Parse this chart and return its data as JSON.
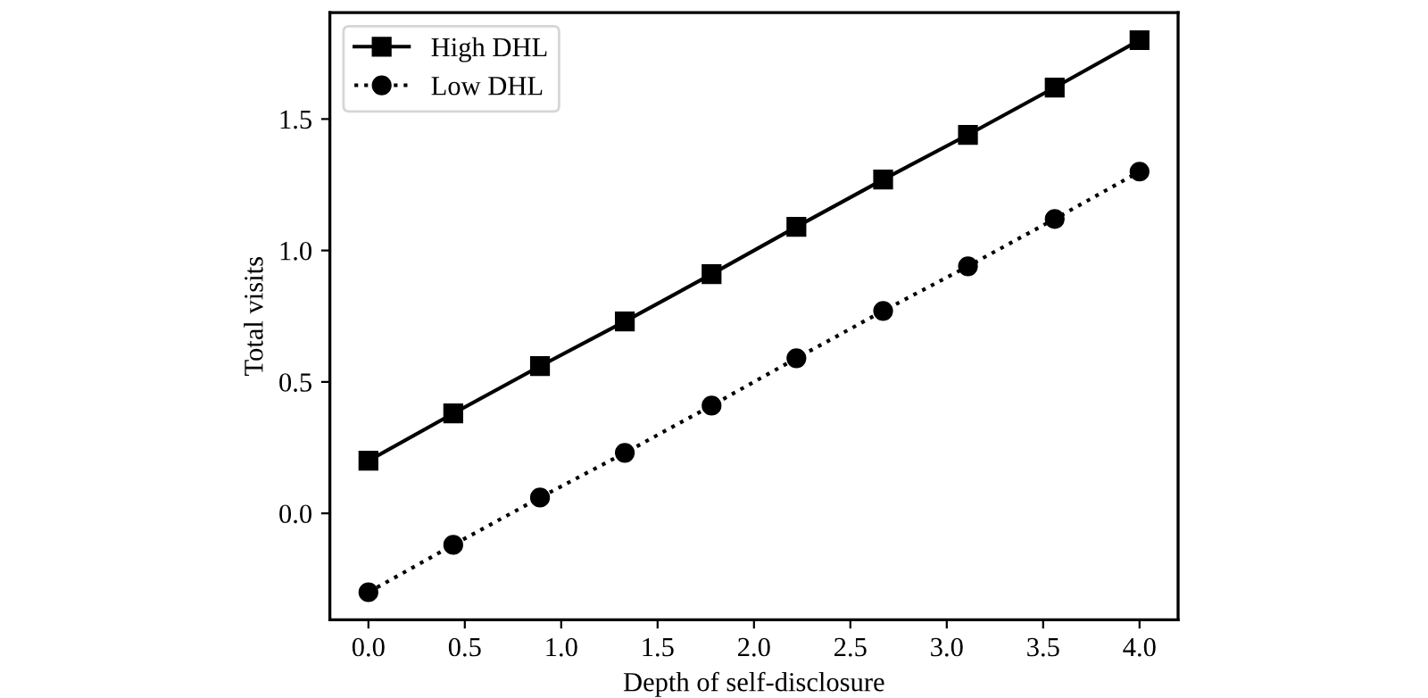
{
  "chart_data": {
    "type": "line",
    "xlabel": "Depth of self-disclosure",
    "ylabel": "Total visits",
    "x": [
      0,
      0.44,
      0.89,
      1.33,
      1.78,
      2.22,
      2.67,
      3.11,
      3.56,
      4.0
    ],
    "series": [
      {
        "name": "High DHL",
        "color": "#000000",
        "marker": "square",
        "line_style": "solid",
        "values": [
          0.2,
          0.38,
          0.56,
          0.73,
          0.91,
          1.09,
          1.27,
          1.44,
          1.62,
          1.8
        ]
      },
      {
        "name": "Low DHL",
        "color": "#000000",
        "marker": "circle",
        "line_style": "dotted",
        "values": [
          -0.3,
          -0.12,
          0.06,
          0.23,
          0.41,
          0.59,
          0.77,
          0.94,
          1.12,
          1.3
        ]
      }
    ],
    "xlim": [
      -0.2,
      4.2
    ],
    "ylim": [
      -0.405,
      1.905
    ],
    "xticks": [
      {
        "value": 0,
        "label": "0.0"
      },
      0.5,
      {
        "value": 1,
        "label": "1.0"
      },
      1.5,
      {
        "value": 2,
        "label": "2.0"
      },
      2.5,
      {
        "value": 3,
        "label": "3.0"
      },
      3.5,
      {
        "value": 4,
        "label": "4.0"
      }
    ],
    "yticks": [
      {
        "value": 0,
        "label": "0.0"
      },
      0.5,
      {
        "value": 1,
        "label": "1.0"
      },
      1.5
    ],
    "grid": false,
    "legend": "top left"
  }
}
